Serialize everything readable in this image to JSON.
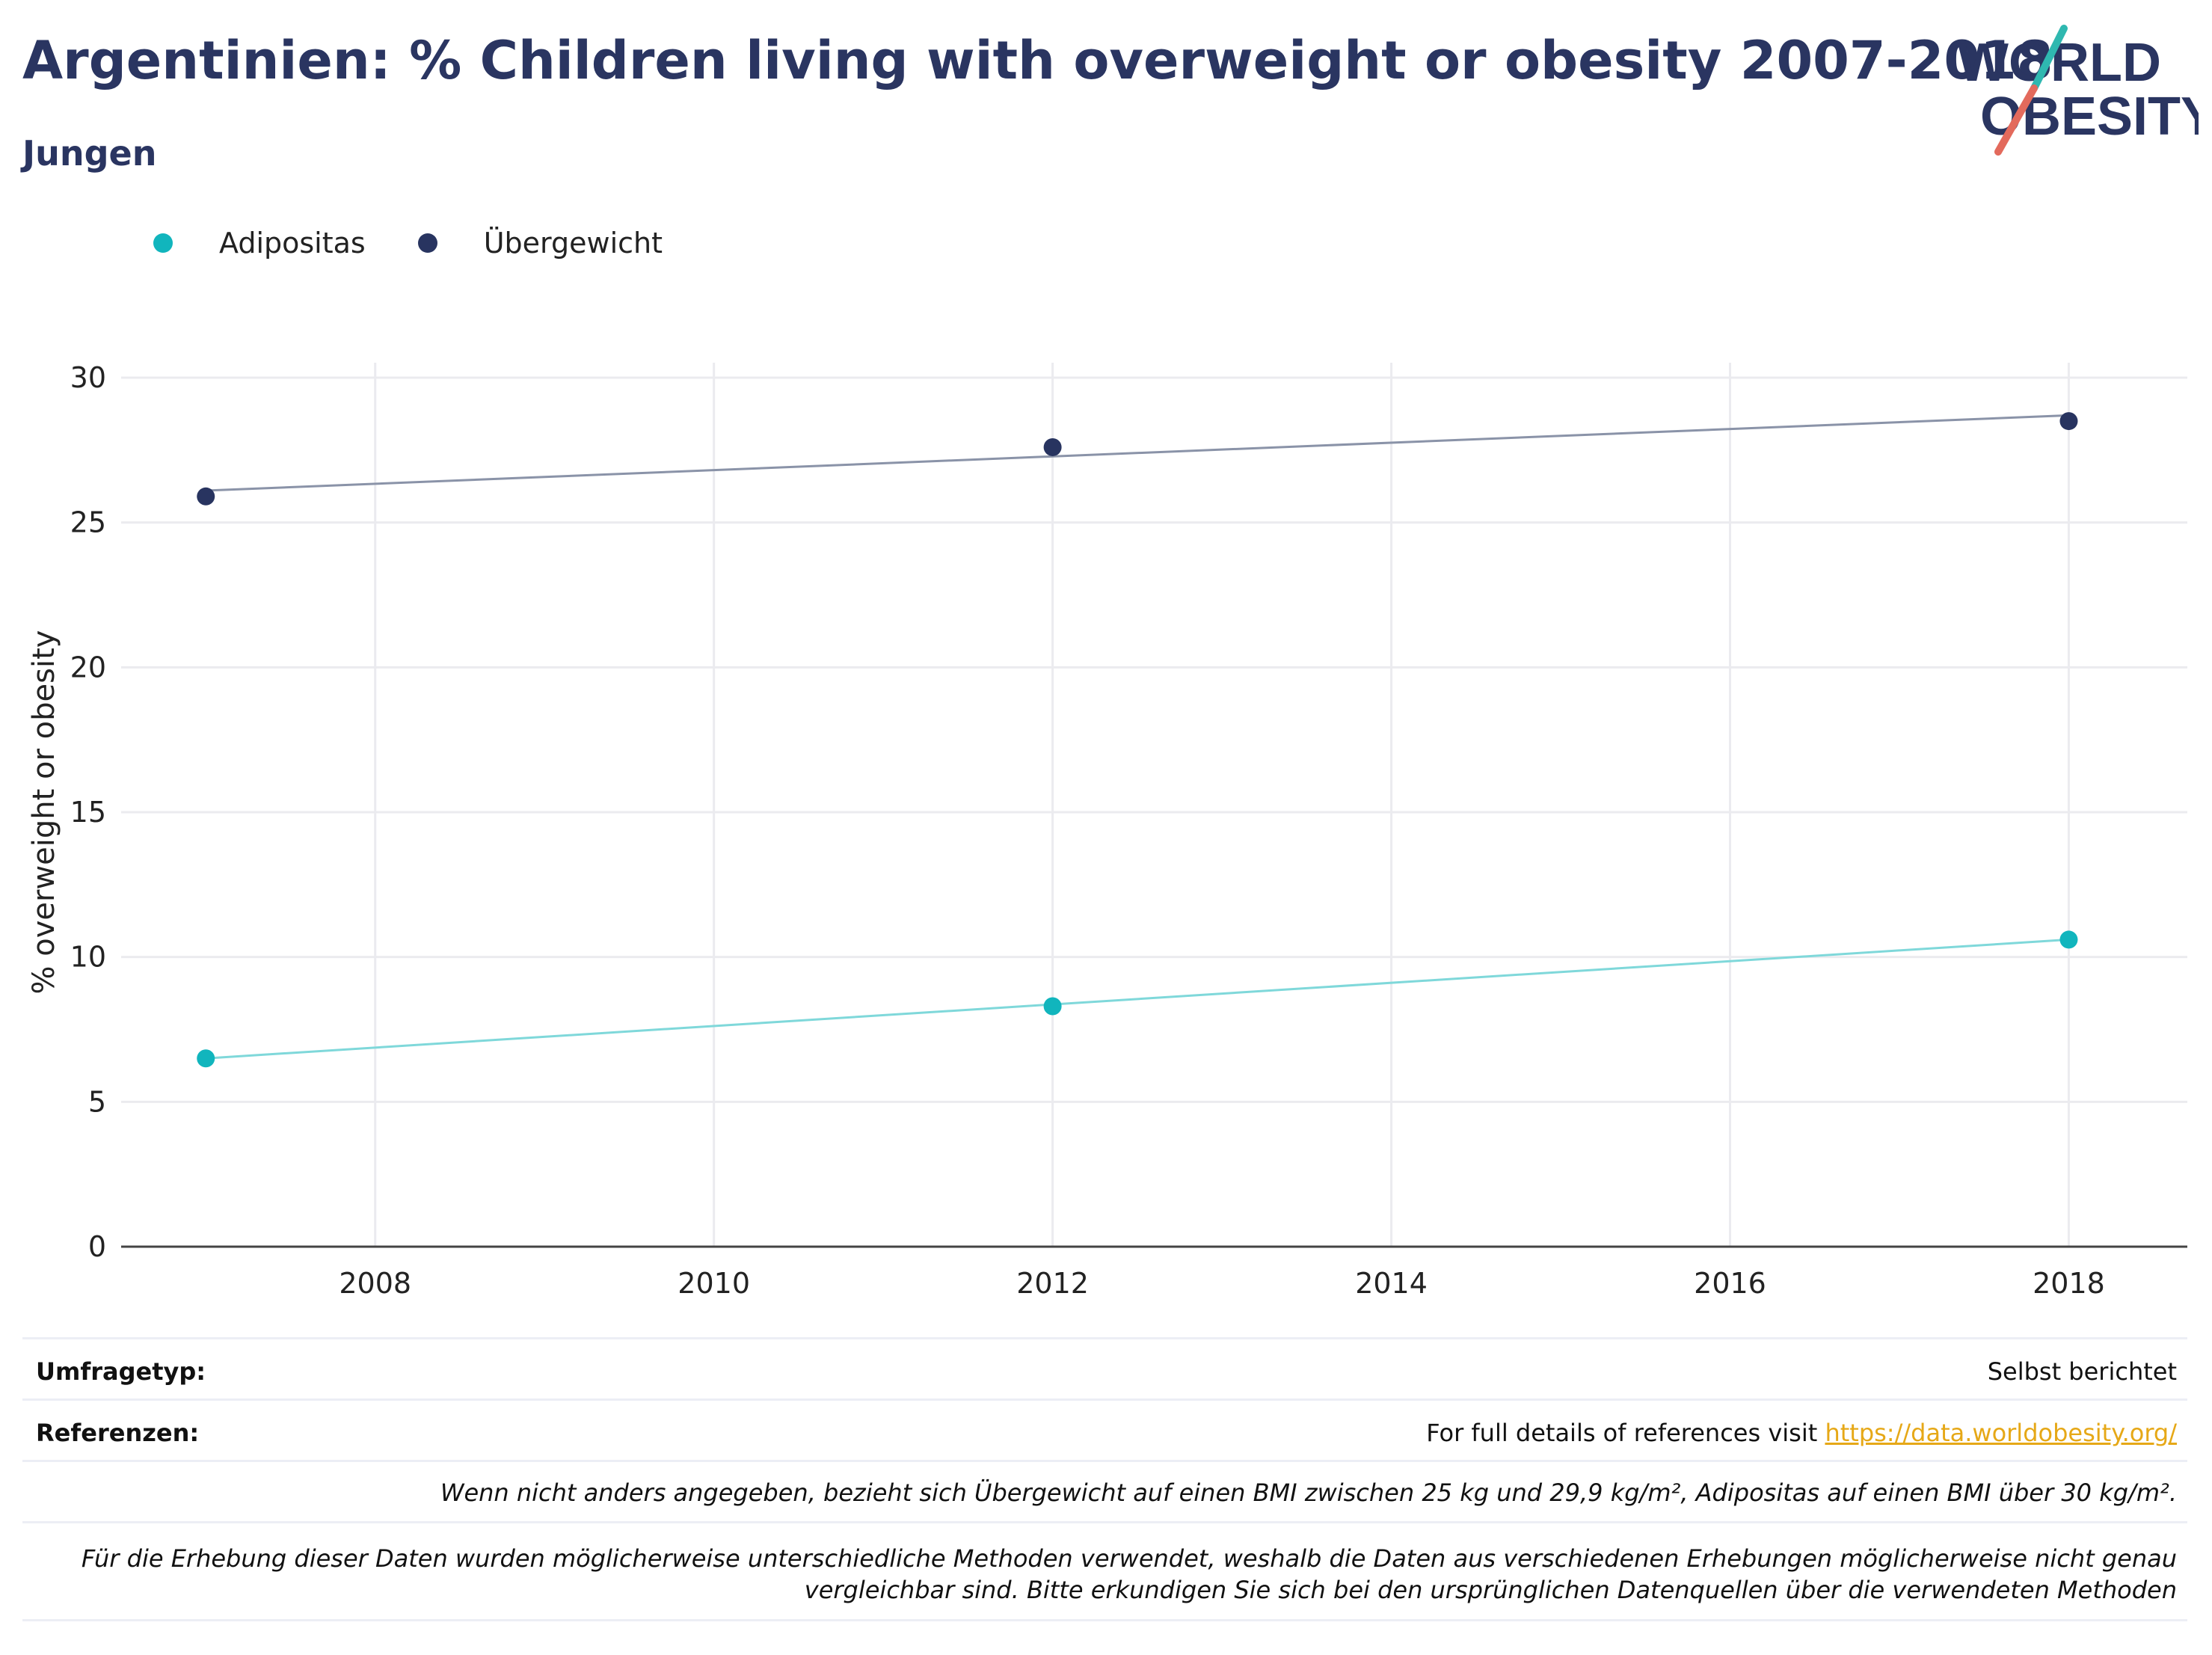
{
  "title": "Argentinien: % Children living with overweight or obesity 2007-2018",
  "subtitle": "Jungen",
  "logo": {
    "line1": "WORLD",
    "line2": "OBESITY"
  },
  "legend": [
    {
      "label": "Adipositas",
      "color": "#11b5bd"
    },
    {
      "label": "Übergewicht",
      "color": "#283460"
    }
  ],
  "chart_data": {
    "type": "scatter",
    "ylabel": "% overweight or obesity",
    "xlabel": "",
    "xlim": [
      2006.5,
      2018.7
    ],
    "ylim": [
      0,
      30
    ],
    "x_ticks": [
      2008,
      2010,
      2012,
      2014,
      2016,
      2018
    ],
    "y_ticks": [
      0,
      5,
      10,
      15,
      20,
      25,
      30
    ],
    "grid": true,
    "legend_position": "top-left",
    "series": [
      {
        "name": "Adipositas",
        "color": "#11b5bd",
        "trend_color": "#7fd8da",
        "x": [
          2007,
          2012,
          2018
        ],
        "y": [
          6.5,
          8.3,
          10.6
        ],
        "trend": [
          [
            2007,
            6.5
          ],
          [
            2018,
            10.6
          ]
        ]
      },
      {
        "name": "Übergewicht",
        "color": "#283460",
        "trend_color": "#8a93a8",
        "x": [
          2007,
          2012,
          2018
        ],
        "y": [
          25.9,
          27.6,
          28.5
        ],
        "trend": [
          [
            2007,
            26.1
          ],
          [
            2018,
            28.7
          ]
        ]
      }
    ]
  },
  "footer": {
    "survey_label": "Umfragetyp:",
    "survey_value": "Selbst berichtet",
    "ref_label": "Referenzen:",
    "ref_text": "For full details of references visit ",
    "ref_link": "https://data.worldobesity.org/",
    "note1": "Wenn nicht anders angegeben, bezieht sich Übergewicht auf einen BMI zwischen 25 kg und 29,9 kg/m², Adipositas auf einen BMI über 30 kg/m².",
    "note2_line1": "Für die Erhebung dieser Daten wurden möglicherweise unterschiedliche Methoden verwendet, weshalb die Daten aus verschiedenen Erhebungen möglicherweise nicht genau",
    "note2_line2": "vergleichbar sind. Bitte erkundigen Sie sich bei den ursprünglichen Datenquellen über die verwendeten Methoden"
  }
}
